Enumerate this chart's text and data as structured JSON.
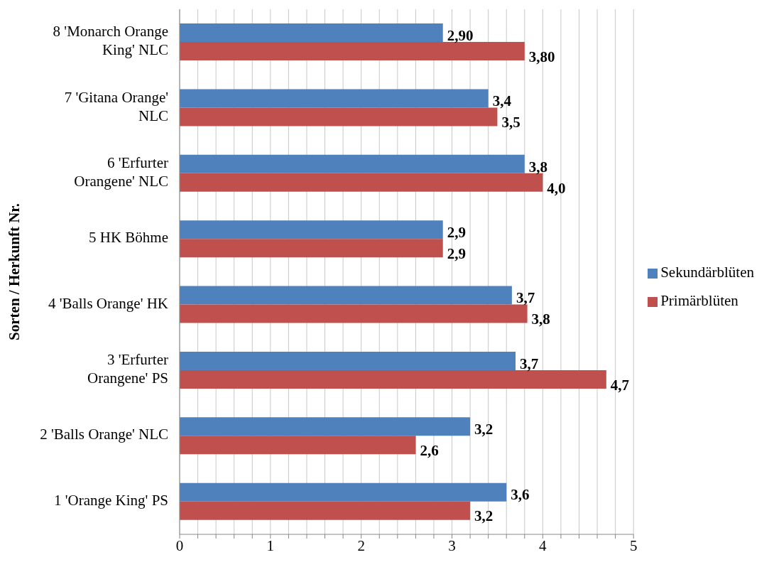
{
  "chart_data": {
    "type": "bar",
    "orientation": "horizontal",
    "ylabel": "Sorten / Herkunft Nr.",
    "categories": [
      "8 'Monarch Orange King' NLC",
      "7 'Gitana Orange' NLC",
      "6 'Erfurter Orangene' NLC",
      "5 HK Böhme",
      "4 'Balls Orange' HK",
      "3 'Erfurter Orangene' PS",
      "2 'Balls Orange' NLC",
      "1 'Orange King' PS"
    ],
    "series": [
      {
        "name": "Sekundärblüten",
        "color": "#4f81bd",
        "values": [
          2.9,
          3.4,
          3.8,
          2.9,
          3.66,
          3.7,
          3.2,
          3.6
        ],
        "value_labels": [
          "2,90",
          "3,4",
          "3,8",
          "2,9",
          "3,7",
          "3,7",
          "3,2",
          "3,6"
        ]
      },
      {
        "name": "Primärblüten",
        "color": "#c0504d",
        "values": [
          3.8,
          3.5,
          4.0,
          2.9,
          3.83,
          4.7,
          2.6,
          3.2
        ],
        "value_labels": [
          "3,80",
          "3,5",
          "4,0",
          "2,9",
          "3,8",
          "4,7",
          "2,6",
          "3,2"
        ]
      }
    ],
    "xlim": [
      0,
      5
    ],
    "xticks": [
      0,
      {
        "value": 0.2,
        "label": null
      },
      {
        "value": 0.4,
        "label": null
      },
      {
        "value": 0.6,
        "label": null
      },
      {
        "value": 0.8,
        "label": null
      },
      1,
      {
        "value": 1.2,
        "label": null
      },
      {
        "value": 1.4,
        "label": null
      },
      {
        "value": 1.6,
        "label": null
      },
      {
        "value": 1.8,
        "label": null
      },
      2,
      {
        "value": 2.2,
        "label": null
      },
      {
        "value": 2.4,
        "label": null
      },
      {
        "value": 2.6,
        "label": null
      },
      {
        "value": 2.8,
        "label": null
      },
      3,
      {
        "value": 3.2,
        "label": null
      },
      {
        "value": 3.4,
        "label": null
      },
      {
        "value": 3.6,
        "label": null
      },
      {
        "value": 3.8,
        "label": null
      },
      4,
      {
        "value": 4.2,
        "label": null
      },
      {
        "value": 4.4,
        "label": null
      },
      {
        "value": 4.6,
        "label": null
      },
      {
        "value": 4.8,
        "label": null
      },
      5
    ],
    "grid": "x",
    "legend": "right"
  }
}
